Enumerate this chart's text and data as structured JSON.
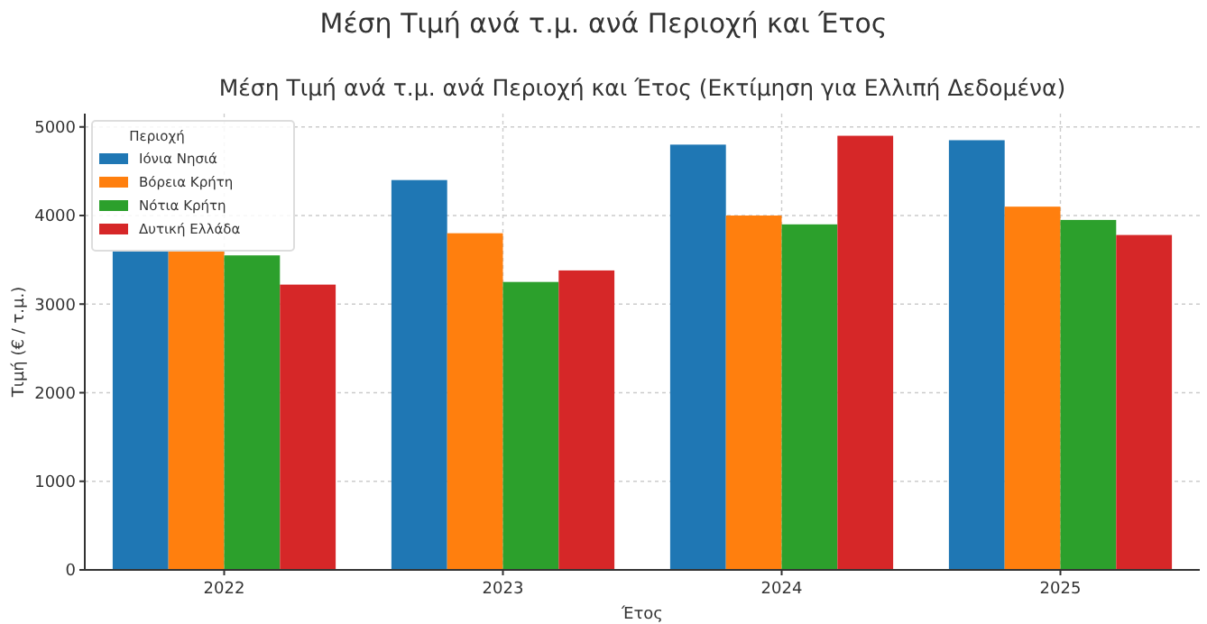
{
  "chart_data": {
    "type": "bar",
    "title": "Μέση Τιμή ανά τ.μ. ανά Περιοχή και Έτος",
    "subtitle": "Μέση Τιμή ανά τ.μ. ανά Περιοχή και Έτος (Εκτίμηση για Ελλιπή Δεδομένα)",
    "xlabel": "Έτος",
    "ylabel": "Τιμή (€ / τ.μ.)",
    "legend_title": "Περιοχή",
    "categories": [
      "2022",
      "2023",
      "2024",
      "2025"
    ],
    "series": [
      {
        "name": "Ιόνια Νησιά",
        "color": "#1f77b4",
        "values": [
          3600,
          4400,
          4800,
          4850
        ]
      },
      {
        "name": "Βόρεια Κρήτη",
        "color": "#ff7f0e",
        "values": [
          3600,
          3800,
          4000,
          4100
        ]
      },
      {
        "name": "Νότια Κρήτη",
        "color": "#2ca02c",
        "values": [
          3550,
          3250,
          3900,
          3950
        ]
      },
      {
        "name": "Δυτική Ελλάδα",
        "color": "#d62728",
        "values": [
          3220,
          3380,
          4900,
          3780
        ]
      }
    ],
    "ylim": [
      0,
      5150
    ],
    "yticks": [
      0,
      1000,
      2000,
      3000,
      4000,
      5000
    ],
    "grid": true,
    "legend": "top left"
  }
}
